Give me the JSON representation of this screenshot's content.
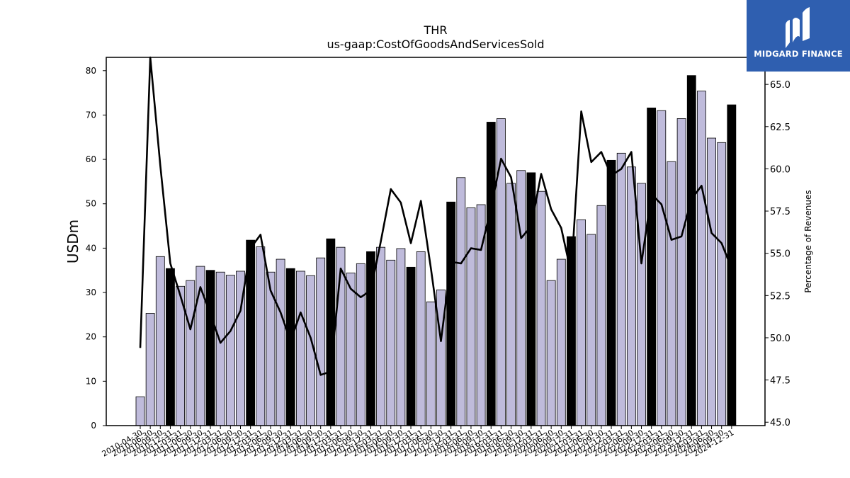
{
  "brand": {
    "name": "MIDGARD FINANCE",
    "color": "#2f5fb0"
  },
  "chart_data": {
    "type": "bar",
    "title": "THR",
    "subtitle": "us-gaap:CostOfGoodsAndServicesSold",
    "ylabel": "USDm",
    "ylabel_right": "Percentage of Revenues",
    "ylim": [
      0,
      83
    ],
    "ylim_right": [
      44.8,
      66.6
    ],
    "yticks": [
      "0",
      "10",
      "20",
      "30",
      "40",
      "50",
      "60",
      "70",
      "80"
    ],
    "yticks_right": [
      "45.0",
      "47.5",
      "50.0",
      "52.5",
      "55.0",
      "57.5",
      "60.0",
      "62.5",
      "65.0"
    ],
    "bar_colors": {
      "quarter": "#bfbbdb",
      "fiscal_year_end": "#000000"
    },
    "line_color": "#000000",
    "grid": false,
    "categories": [
      "2010-04-30",
      "2010-06-30",
      "2010-09-30",
      "2010-12-31",
      "2011-03-31",
      "2011-06-30",
      "2011-09-30",
      "2011-12-31",
      "2012-03-31",
      "2012-06-30",
      "2012-09-30",
      "2012-12-31",
      "2013-03-31",
      "2013-06-30",
      "2013-09-30",
      "2013-12-31",
      "2014-03-31",
      "2014-06-30",
      "2014-09-30",
      "2014-12-31",
      "2015-03-31",
      "2015-06-30",
      "2015-09-30",
      "2015-12-31",
      "2016-03-31",
      "2016-06-30",
      "2016-09-30",
      "2016-12-31",
      "2017-03-31",
      "2017-06-30",
      "2017-09-30",
      "2017-12-31",
      "2018-03-31",
      "2018-06-30",
      "2018-09-30",
      "2018-12-31",
      "2019-03-31",
      "2019-06-30",
      "2019-09-30",
      "2019-12-31",
      "2020-03-31",
      "2020-06-30",
      "2020-09-30",
      "2020-12-31",
      "2021-03-31",
      "2021-06-30",
      "2021-09-30",
      "2021-12-31",
      "2022-03-31",
      "2022-06-30",
      "2022-09-30",
      "2022-12-31",
      "2023-03-31",
      "2023-06-30",
      "2023-09-30",
      "2023-12-31",
      "2024-03-31",
      "2024-06-30",
      "2024-09-30",
      "2024-12-31"
    ],
    "series": [
      {
        "values": [
          6.5,
          25.3,
          38.1,
          35.4,
          31.4,
          32.7,
          35.9,
          35.0,
          34.6,
          33.9,
          34.8,
          41.8,
          40.3,
          34.6,
          37.5,
          35.4,
          34.8,
          33.8,
          37.8,
          42.1,
          40.2,
          34.4,
          36.5,
          39.2,
          40.2,
          37.3,
          39.9,
          35.7,
          39.2,
          27.9,
          30.6,
          50.4,
          55.9,
          49.1,
          49.8,
          68.4,
          69.2,
          54.6,
          57.5,
          57.0,
          52.8,
          32.7,
          37.5,
          42.6,
          46.4,
          43.1,
          49.6,
          59.8,
          61.4,
          58.3,
          54.6,
          71.6,
          71.0,
          59.5,
          69.2,
          78.9,
          75.4,
          64.8,
          63.8,
          72.3
        ],
        "fiscal_year_end": [
          false,
          false,
          false,
          true,
          false,
          false,
          false,
          true,
          false,
          false,
          false,
          true,
          false,
          false,
          false,
          true,
          false,
          false,
          false,
          true,
          false,
          false,
          false,
          true,
          false,
          false,
          false,
          true,
          false,
          false,
          false,
          true,
          false,
          false,
          false,
          true,
          false,
          false,
          false,
          true,
          false,
          false,
          false,
          true,
          false,
          false,
          false,
          true,
          false,
          false,
          false,
          true,
          false,
          false,
          false,
          true,
          false,
          false,
          false,
          true
        ]
      },
      {
        "axis": "right",
        "values": [
          49.4,
          66.6,
          60.2,
          54.4,
          52.5,
          50.5,
          53.0,
          51.4,
          49.7,
          50.4,
          51.6,
          55.3,
          56.1,
          52.8,
          51.5,
          49.8,
          51.5,
          50.0,
          47.8,
          48.0,
          54.1,
          52.9,
          52.4,
          52.8,
          55.7,
          58.8,
          58.0,
          55.6,
          58.1,
          54.1,
          49.8,
          54.5,
          54.4,
          55.3,
          55.2,
          57.7,
          60.6,
          59.5,
          55.9,
          56.6,
          59.7,
          57.6,
          56.5,
          53.8,
          63.4,
          60.4,
          61.0,
          59.6,
          60.0,
          61.0,
          54.4,
          58.5,
          57.9,
          55.8,
          56.0,
          58.2,
          59.0,
          56.2,
          55.6,
          54.1
        ]
      }
    ]
  }
}
